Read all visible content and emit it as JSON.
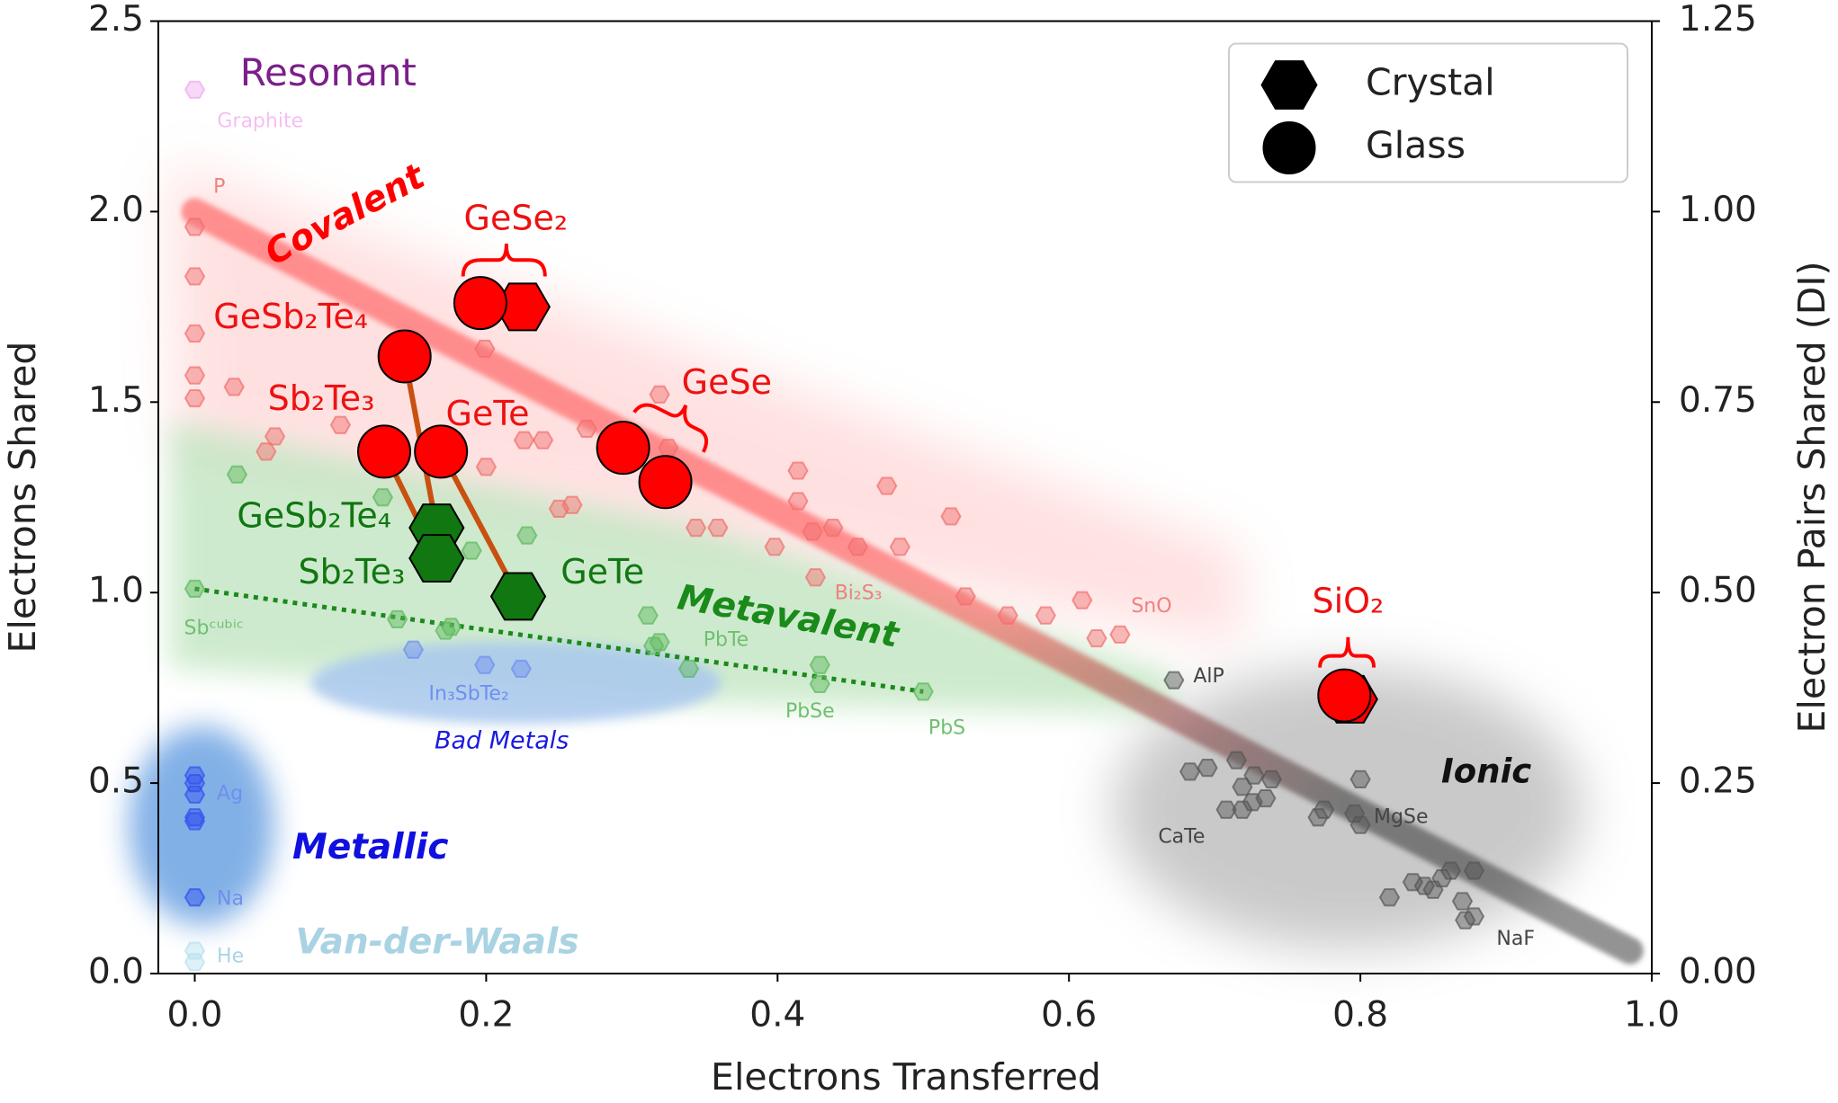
{
  "chart_data": {
    "type": "scatter",
    "xlabel": "Electrons Transferred",
    "ylabel": "Electrons Shared",
    "y2label": "Electron Pairs Shared (DI)",
    "xlim": [
      -0.025,
      1.0
    ],
    "ylim": [
      0,
      2.5
    ],
    "y2lim": [
      0,
      1.25
    ],
    "xticks": [
      {
        "value": 0,
        "label": "0.0"
      },
      0.2,
      0.4,
      0.6,
      0.8,
      {
        "value": 1,
        "label": "1.0"
      }
    ],
    "yticks": [
      {
        "value": 0,
        "label": "0.0"
      },
      0.5,
      {
        "value": 1,
        "label": "1.0"
      },
      1.5,
      {
        "value": 2,
        "label": "2.0"
      },
      2.5
    ],
    "y2ticks": [
      {
        "value": 0,
        "label": "0.00"
      },
      0.25,
      {
        "value": 0.5,
        "label": "0.50"
      },
      0.75,
      {
        "value": 1,
        "label": "1.00"
      },
      1.25
    ],
    "legend": "upper right",
    "lines": [
      {
        "x": [
          0,
          0.985
        ],
        "values": [
          2.0,
          0.06
        ],
        "colors": [
          "#ff3b3b",
          "#2b2b2b"
        ],
        "style": "band"
      },
      {
        "x": [
          0,
          0.5
        ],
        "values": [
          1.01,
          0.74
        ],
        "color": "#1a8a1a",
        "style": "dotted"
      }
    ],
    "series": [
      {
        "name": "Covalent",
        "color": "#f26d6d",
        "label_color": "#ff0000",
        "point_label_color": "#f08080",
        "marker": "hexagon",
        "faded": true,
        "x": [
          0,
          0,
          0,
          0,
          0,
          0.027,
          0.055,
          0.049,
          0.1,
          0.128,
          0.199,
          0.2,
          0.226,
          0.239,
          0.25,
          0.259,
          0.269,
          0.319,
          0.325,
          0.344,
          0.359,
          0.398,
          0.414,
          0.414,
          0.424,
          0.438,
          0.455,
          0.475,
          0.484,
          0.426,
          0.519,
          0.529,
          0.558,
          0.584,
          0.609,
          0.619,
          0.635
        ],
        "values": [
          1.96,
          1.83,
          1.68,
          1.57,
          1.51,
          1.54,
          1.41,
          1.37,
          1.44,
          1.33,
          1.64,
          1.33,
          1.4,
          1.4,
          1.22,
          1.23,
          1.43,
          1.52,
          1.38,
          1.17,
          1.17,
          1.12,
          1.32,
          1.24,
          1.16,
          1.17,
          1.12,
          1.28,
          1.12,
          1.04,
          1.2,
          0.99,
          0.94,
          0.94,
          0.98,
          0.88,
          0.89
        ],
        "point_labels": [
          "P",
          null,
          null,
          null,
          null,
          null,
          null,
          null,
          null,
          null,
          null,
          null,
          null,
          null,
          null,
          null,
          null,
          null,
          null,
          null,
          null,
          null,
          null,
          null,
          null,
          null,
          null,
          null,
          null,
          "Bi₂S₃",
          null,
          null,
          null,
          null,
          "SnO",
          null,
          null
        ]
      },
      {
        "name": "Metavalent",
        "color": "#5cb85c",
        "label_color": "#1a8a1a",
        "point_label_color": "#6fbf6f",
        "marker": "hexagon",
        "faded": true,
        "x": [
          0,
          0.029,
          0.129,
          0.139,
          0.176,
          0.172,
          0.19,
          0.228,
          0.311,
          0.315,
          0.319,
          0.339,
          0.429,
          0.429,
          0.5
        ],
        "values": [
          1.01,
          1.31,
          1.25,
          0.93,
          0.91,
          0.9,
          1.11,
          1.15,
          0.94,
          0.86,
          0.87,
          0.8,
          0.81,
          0.76,
          0.74
        ],
        "point_labels": [
          "Sbᶜᵘᵇⁱᶜ",
          null,
          null,
          null,
          null,
          null,
          null,
          null,
          null,
          null,
          "PbTe",
          null,
          null,
          "PbSe",
          "PbS"
        ]
      },
      {
        "name": "Bad Metals",
        "color": "#6f8fef",
        "label_color": "#1a1ae0",
        "point_label_color": "#6f8fef",
        "marker": "hexagon",
        "faded": true,
        "x": [
          0.15,
          0.199,
          0.224
        ],
        "values": [
          0.85,
          0.81,
          0.8
        ],
        "point_labels": [
          null,
          "In₃SbTe₂",
          null
        ]
      },
      {
        "name": "Metallic",
        "color": "#2f4ff0",
        "label_color": "#1010e0",
        "point_label_color": "#6f8fef",
        "marker": "hexagon",
        "faded": true,
        "x": [
          0,
          0,
          0,
          0,
          0,
          0
        ],
        "values": [
          0.52,
          0.5,
          0.47,
          0.41,
          0.4,
          0.2
        ],
        "point_labels": [
          null,
          null,
          "Ag",
          null,
          null,
          "Na"
        ]
      },
      {
        "name": "Van-der-Waals",
        "color": "#b8dff0",
        "label_color": "#a9d3e3",
        "point_label_color": "#aad4e6",
        "marker": "hexagon",
        "faded": true,
        "x": [
          0,
          0
        ],
        "values": [
          0.06,
          0.03
        ],
        "point_labels": [
          null,
          "He"
        ]
      },
      {
        "name": "Resonant",
        "color": "#f0a8f0",
        "label_color": "#7b1f8a",
        "point_label_color": "#f4bff4",
        "marker": "hexagon",
        "faded": true,
        "x": [
          0
        ],
        "values": [
          2.32
        ],
        "point_labels": [
          "Graphite"
        ]
      },
      {
        "name": "Ionic",
        "color": "#555555",
        "label_color": "#111111",
        "point_label_color": "#444444",
        "marker": "hexagon",
        "faded": true,
        "x": [
          0.672,
          0.683,
          0.695,
          0.715,
          0.719,
          0.727,
          0.708,
          0.726,
          0.735,
          0.739,
          0.719,
          0.771,
          0.775,
          0.796,
          0.8,
          0.8,
          0.82,
          0.836,
          0.844,
          0.85,
          0.856,
          0.862,
          0.87,
          0.872,
          0.878,
          0.878
        ],
        "values": [
          0.77,
          0.53,
          0.54,
          0.56,
          0.49,
          0.52,
          0.43,
          0.45,
          0.46,
          0.51,
          0.43,
          0.41,
          0.43,
          0.42,
          0.51,
          0.39,
          0.2,
          0.24,
          0.23,
          0.22,
          0.25,
          0.27,
          0.19,
          0.14,
          0.27,
          0.15
        ],
        "point_labels": [
          "AlP",
          null,
          null,
          null,
          null,
          null,
          "CaTe",
          null,
          null,
          null,
          null,
          null,
          null,
          null,
          null,
          "MgSe",
          null,
          null,
          null,
          null,
          null,
          null,
          null,
          null,
          null,
          "NaF"
        ]
      },
      {
        "name": "Crystal",
        "color": "#000000",
        "colors": [
          "#ff0000",
          "#ff0000",
          "#117711",
          "#117711",
          "#117711"
        ],
        "point_label_color": "#117711",
        "marker": "hexagon",
        "in_legend": true,
        "x": [
          0.225,
          0.793,
          0.166,
          0.166,
          0.222
        ],
        "values": [
          1.75,
          0.72,
          1.17,
          1.09,
          0.99
        ],
        "point_labels": [
          null,
          null,
          "GeSb₂Te₄",
          "Sb₂Te₃",
          "GeTe"
        ]
      },
      {
        "name": "Glass",
        "color": "#000000",
        "colors": [
          "#ff0000",
          "#ff0000",
          "#ff0000",
          "#ff0000",
          "#ff0000",
          "#ff0000",
          "#ff0000"
        ],
        "point_label_color": "#ee1111",
        "marker": "circle",
        "in_legend": true,
        "x": [
          0.196,
          0.144,
          0.13,
          0.169,
          0.294,
          0.323,
          0.789
        ],
        "values": [
          1.76,
          1.62,
          1.37,
          1.37,
          1.38,
          1.29,
          0.73
        ],
        "point_labels": [
          "GeSe₂",
          "GeSb₂Te₄",
          "Sb₂Te₃",
          "GeTe",
          "GeSe",
          null,
          "SiO₂"
        ]
      }
    ]
  }
}
